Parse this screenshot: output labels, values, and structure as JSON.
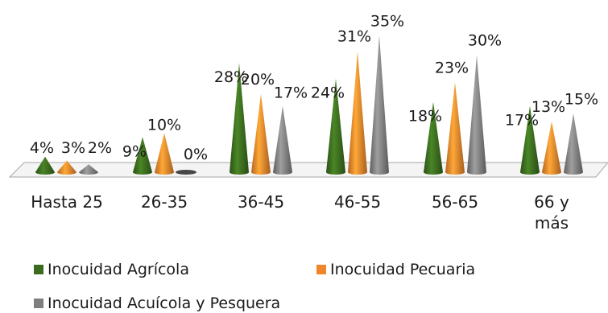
{
  "chart_data": {
    "type": "bar",
    "style": "3d-cone",
    "categories": [
      "Hasta 25",
      "26-35",
      "36-45",
      "46-55",
      "56-65",
      "66 y más"
    ],
    "category_lines": [
      [
        "Hasta 25"
      ],
      [
        "26-35"
      ],
      [
        "36-45"
      ],
      [
        "46-55"
      ],
      [
        "56-65"
      ],
      [
        "66 y",
        "más"
      ]
    ],
    "series": [
      {
        "name": "Inocuidad Agrícola",
        "color": "#3b6b1e",
        "values": [
          4,
          9,
          28,
          24,
          18,
          17
        ],
        "labels": [
          "4%",
          "9%",
          "28%",
          "24%",
          "18%",
          "17%"
        ]
      },
      {
        "name": "Inocuidad Pecuaria",
        "color": "#f0862c",
        "values": [
          3,
          10,
          20,
          31,
          23,
          13
        ],
        "labels": [
          "3%",
          "10%",
          "20%",
          "31%",
          "23%",
          "13%"
        ]
      },
      {
        "name": "Inocuidad Acuícola y Pesquera",
        "color": "#7f7f7f",
        "values": [
          2,
          0,
          17,
          35,
          30,
          15
        ],
        "labels": [
          "2%",
          "0%",
          "17%",
          "35%",
          "30%",
          "15%"
        ]
      }
    ],
    "ylim": [
      0,
      35
    ],
    "grid": false,
    "legend_position": "bottom"
  }
}
